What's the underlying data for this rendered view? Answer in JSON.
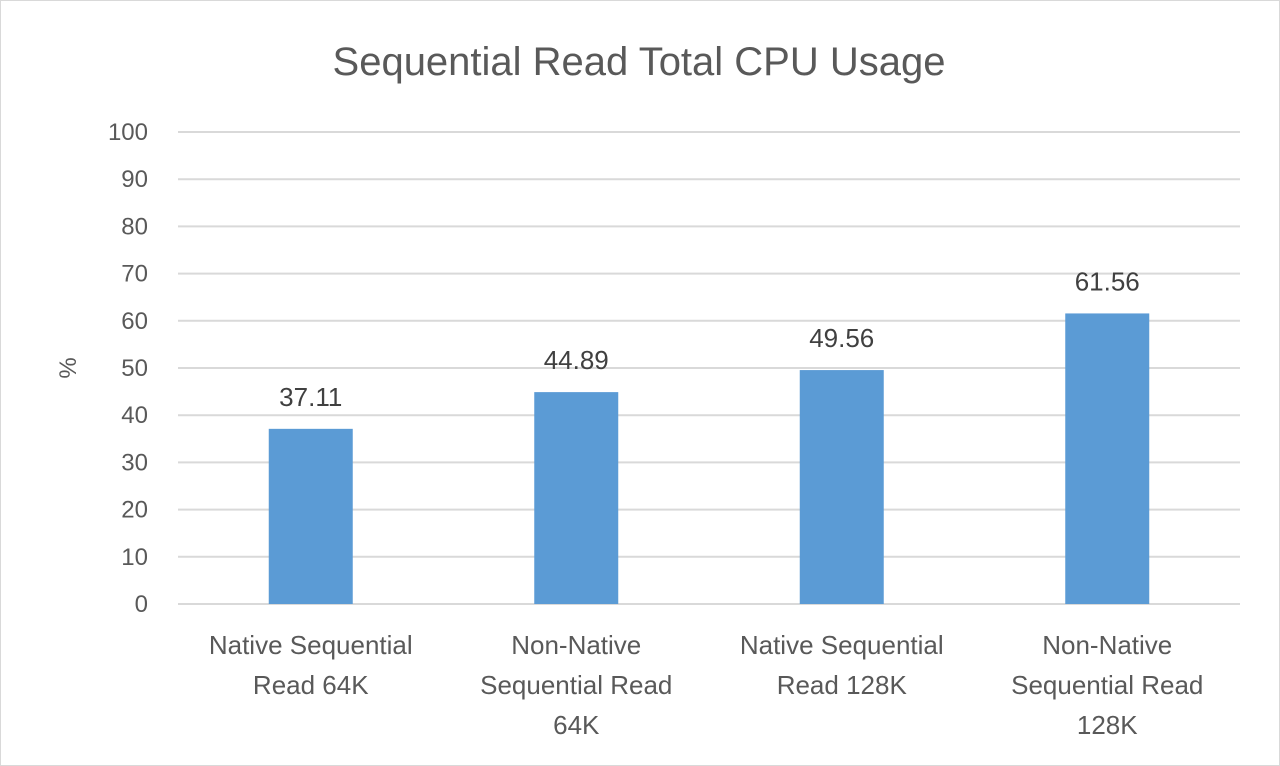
{
  "chart_data": {
    "type": "bar",
    "title": "Sequential Read Total CPU Usage",
    "xlabel": "",
    "ylabel": "%",
    "ylim": [
      0,
      100
    ],
    "yticks": [
      "0",
      "10",
      "20",
      "30",
      "40",
      "50",
      "60",
      "70",
      "80",
      "90",
      "100"
    ],
    "grid": true,
    "categories": [
      [
        "Native Sequential",
        "Read 64K"
      ],
      [
        "Non-Native",
        "Sequential Read",
        "64K"
      ],
      [
        "Native Sequential",
        "Read 128K"
      ],
      [
        "Non-Native",
        "Sequential Read",
        "128K"
      ]
    ],
    "values": [
      37.11,
      44.89,
      49.56,
      61.56
    ],
    "data_labels": [
      "37.11",
      "44.89",
      "49.56",
      "61.56"
    ],
    "bar_color": "#5b9bd5",
    "grid_color": "#d9d9d9"
  }
}
